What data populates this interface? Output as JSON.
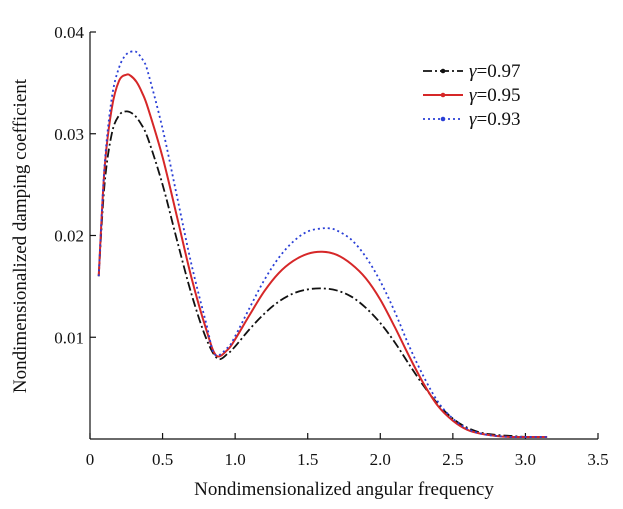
{
  "chart_data": {
    "type": "line",
    "title": "",
    "xlabel": "Nondimensionalized angular frequency",
    "ylabel": "Nondimensionalized damping coefficient",
    "xlim": [
      0,
      3.5
    ],
    "ylim": [
      0,
      0.04
    ],
    "x_ticks": [
      0,
      0.5,
      1.0,
      1.5,
      2.0,
      2.5,
      3.0,
      3.5
    ],
    "x_tick_labels": [
      "0",
      "0.5",
      "1.0",
      "1.5",
      "2.0",
      "2.5",
      "3.0",
      "3.5"
    ],
    "y_ticks": [
      0.01,
      0.02,
      0.03,
      0.04
    ],
    "y_tick_labels": [
      "0.01",
      "0.02",
      "0.03",
      "0.04"
    ],
    "legend_position": "top-right",
    "series": [
      {
        "name": "γ=0.97",
        "legend_symbol": "γ",
        "legend_value": "=0.97",
        "color": "#111111",
        "style": "dash-dot",
        "x": [
          0.06,
          0.1,
          0.15,
          0.2,
          0.25,
          0.3,
          0.35,
          0.4,
          0.5,
          0.6,
          0.7,
          0.8,
          0.88,
          0.95,
          1.0,
          1.1,
          1.2,
          1.3,
          1.4,
          1.5,
          1.6,
          1.7,
          1.8,
          1.9,
          2.0,
          2.1,
          2.2,
          2.3,
          2.4,
          2.5,
          2.6,
          2.7,
          2.8,
          2.9,
          3.0,
          3.1,
          3.15
        ],
        "y": [
          0.016,
          0.025,
          0.03,
          0.0318,
          0.0322,
          0.0319,
          0.031,
          0.0295,
          0.025,
          0.0195,
          0.0142,
          0.0099,
          0.0079,
          0.0084,
          0.0091,
          0.0108,
          0.0123,
          0.0135,
          0.0143,
          0.0147,
          0.0148,
          0.0146,
          0.014,
          0.0129,
          0.0114,
          0.0095,
          0.0073,
          0.0052,
          0.0034,
          0.002,
          0.0011,
          0.0006,
          0.0004,
          0.0003,
          0.0002,
          0.0002,
          0.0002
        ]
      },
      {
        "name": "γ=0.95",
        "legend_symbol": "γ",
        "legend_value": "=0.95",
        "color": "#d62728",
        "style": "solid",
        "x": [
          0.06,
          0.1,
          0.15,
          0.2,
          0.25,
          0.28,
          0.32,
          0.36,
          0.4,
          0.5,
          0.6,
          0.7,
          0.8,
          0.87,
          0.95,
          1.0,
          1.1,
          1.2,
          1.3,
          1.4,
          1.5,
          1.6,
          1.7,
          1.8,
          1.9,
          2.0,
          2.1,
          2.2,
          2.3,
          2.4,
          2.5,
          2.6,
          2.7,
          2.8,
          2.9,
          3.0,
          3.1,
          3.15
        ],
        "y": [
          0.016,
          0.0265,
          0.0325,
          0.0352,
          0.0358,
          0.0357,
          0.0351,
          0.034,
          0.0325,
          0.0277,
          0.0218,
          0.0158,
          0.0108,
          0.0082,
          0.0088,
          0.0098,
          0.0122,
          0.0145,
          0.0163,
          0.0175,
          0.0182,
          0.0184,
          0.0181,
          0.0172,
          0.0158,
          0.0137,
          0.011,
          0.0081,
          0.0054,
          0.0032,
          0.0018,
          0.0009,
          0.0005,
          0.0003,
          0.0002,
          0.0002,
          0.0002,
          0.0002
        ]
      },
      {
        "name": "γ=0.93",
        "legend_symbol": "γ",
        "legend_value": "=0.93",
        "color": "#2a3fd6",
        "style": "dotted",
        "x": [
          0.06,
          0.1,
          0.15,
          0.2,
          0.25,
          0.3,
          0.33,
          0.37,
          0.4,
          0.5,
          0.6,
          0.7,
          0.8,
          0.86,
          0.95,
          1.0,
          1.1,
          1.2,
          1.3,
          1.4,
          1.5,
          1.6,
          1.65,
          1.7,
          1.8,
          1.9,
          2.0,
          2.1,
          2.2,
          2.3,
          2.4,
          2.5,
          2.6,
          2.7,
          2.8,
          2.9,
          3.0,
          3.1,
          3.15
        ],
        "y": [
          0.016,
          0.0268,
          0.0335,
          0.0365,
          0.0378,
          0.0381,
          0.0379,
          0.0371,
          0.036,
          0.0305,
          0.0238,
          0.0171,
          0.0114,
          0.0083,
          0.009,
          0.0101,
          0.0129,
          0.0156,
          0.0178,
          0.0194,
          0.0204,
          0.0207,
          0.0207,
          0.0205,
          0.0196,
          0.0179,
          0.0155,
          0.0125,
          0.0091,
          0.0061,
          0.0036,
          0.002,
          0.001,
          0.0005,
          0.0003,
          0.0002,
          0.0002,
          0.0002,
          0.0002
        ]
      }
    ]
  }
}
